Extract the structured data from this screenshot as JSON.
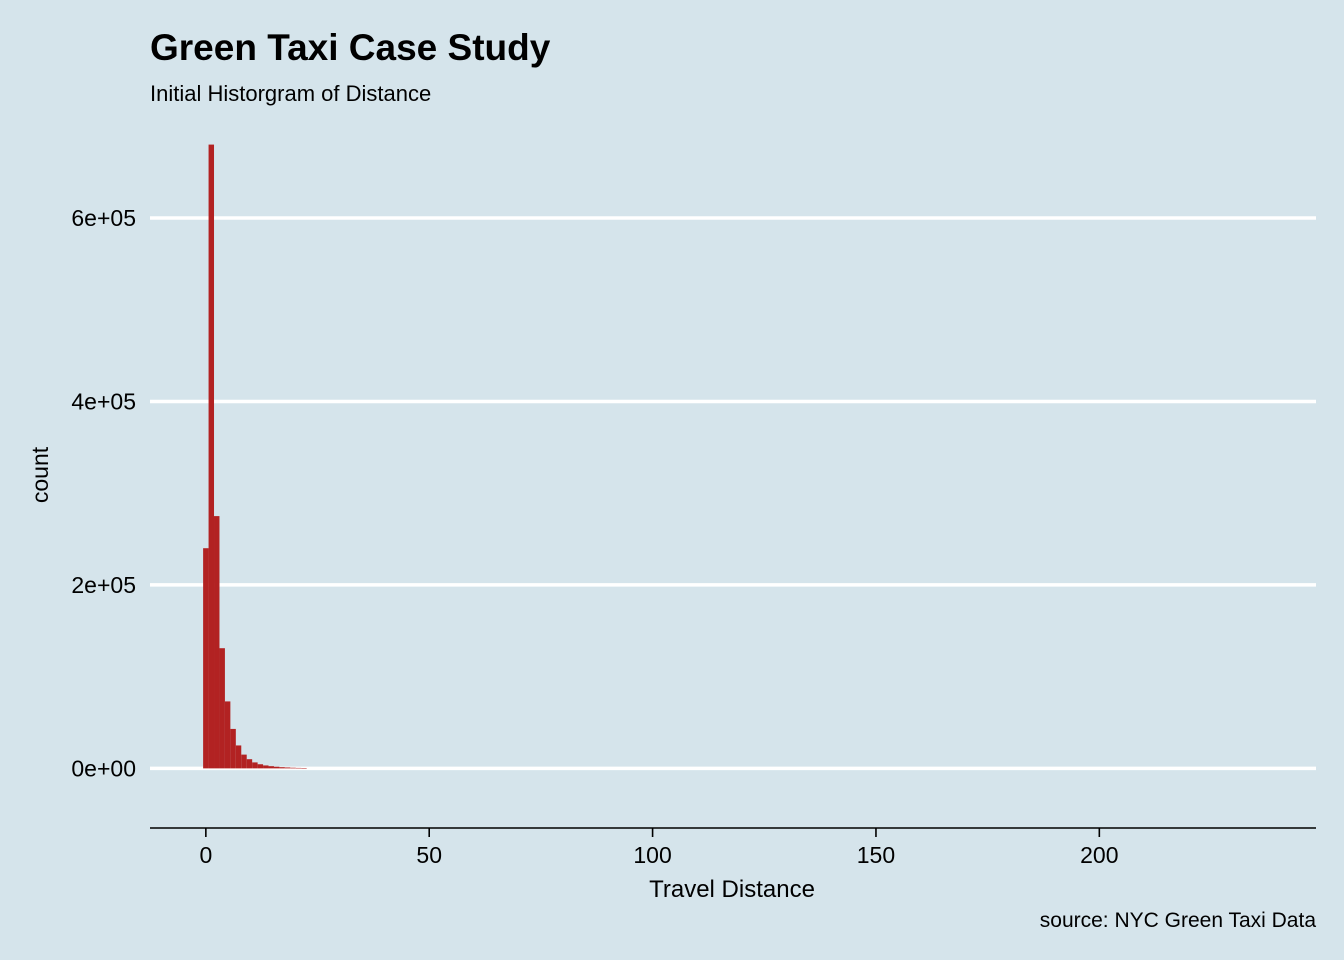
{
  "chart_data": {
    "type": "bar",
    "title": "Green Taxi Case Study",
    "subtitle": "Initial Historgram of Distance",
    "caption": "source: NYC Green Taxi Data",
    "xlabel": "Travel Distance",
    "ylabel": "count",
    "xlim": [
      -12.5,
      248.5
    ],
    "ylim": [
      -65000,
      685000
    ],
    "x_ticks": [
      0,
      50,
      100,
      150,
      200
    ],
    "x_tick_labels": [
      "0",
      "50",
      "100",
      "150",
      "200"
    ],
    "y_ticks": [
      0,
      200000,
      400000,
      600000
    ],
    "y_tick_labels": [
      "0e+00",
      "2e+05",
      "4e+05",
      "6e+05"
    ],
    "grid": "horizontal major lines only",
    "bin_width": 1.22,
    "bin_centers": [
      0,
      1.22,
      2.44,
      3.66,
      4.88,
      6.1,
      7.32,
      8.54,
      9.76,
      10.98,
      12.2,
      13.42,
      14.64,
      15.86,
      17.08,
      18.3,
      19.52,
      20.74,
      21.96
    ],
    "values": [
      240000,
      680000,
      275000,
      131000,
      73000,
      43000,
      25000,
      15000,
      10000,
      6500,
      4500,
      3200,
      2400,
      1800,
      1300,
      1000,
      700,
      500,
      350
    ],
    "bar_color": "#b22222",
    "background_color": "#d5e4eb",
    "grid_color": "#ffffff"
  }
}
